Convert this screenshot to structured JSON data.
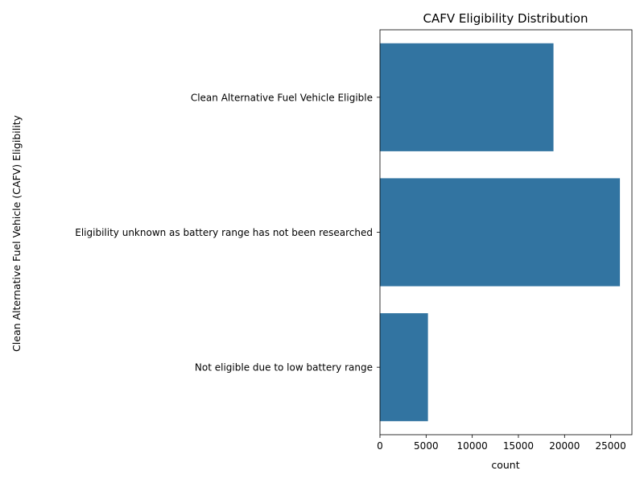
{
  "chart_data": {
    "type": "bar",
    "orientation": "horizontal",
    "title": "CAFV Eligibility Distribution",
    "xlabel": "count",
    "ylabel": "Clean Alternative Fuel Vehicle (CAFV) Eligibility",
    "categories": [
      "Clean Alternative Fuel Vehicle Eligible",
      "Eligibility unknown as battery range has not been researched",
      "Not eligible due to low battery range"
    ],
    "values": [
      18800,
      26000,
      5200
    ],
    "xlim": [
      0,
      27300
    ],
    "xticks": [
      0,
      5000,
      10000,
      15000,
      20000,
      25000
    ],
    "grid": false,
    "legend": "none",
    "bar_color": "#3274a1"
  }
}
